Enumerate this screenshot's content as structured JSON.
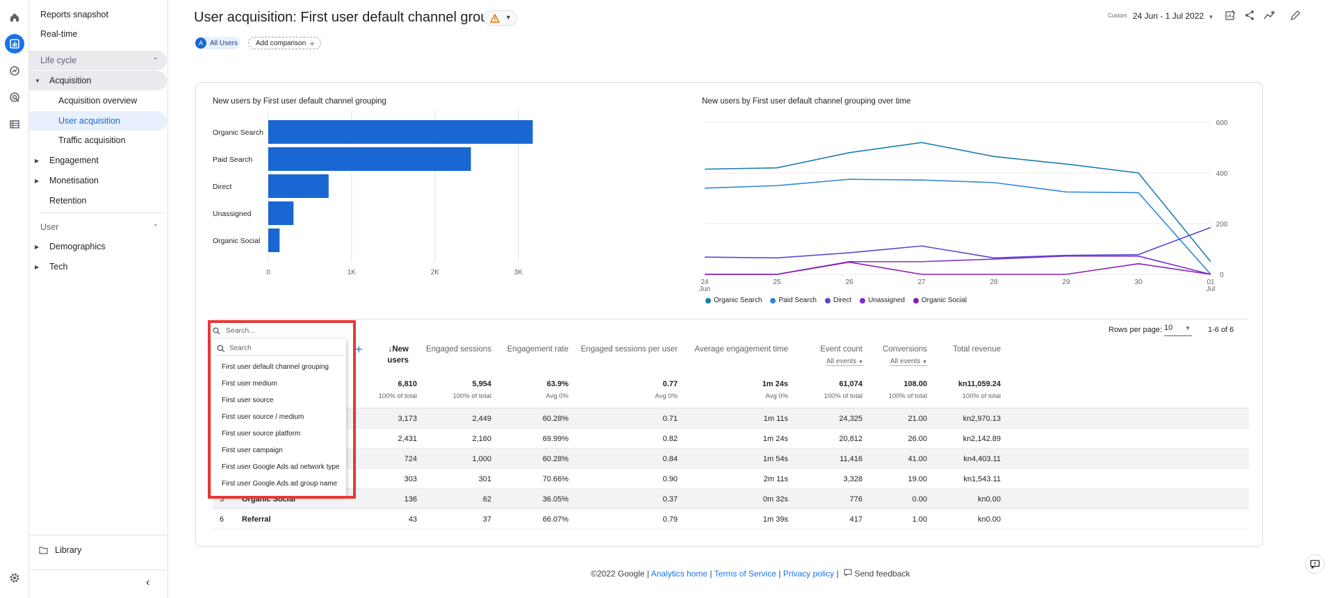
{
  "page_title": "User acquisition: First user default channel grouping",
  "header": {
    "comparison_chip": "All Users",
    "comparison_badge": "A",
    "add_comparison": "Add comparison",
    "date_label": "Custom",
    "date_range": "24 Jun - 1 Jul 2022"
  },
  "sidebar": {
    "top_items": [
      "Reports snapshot",
      "Real-time"
    ],
    "section_lifecycle": "Life cycle",
    "acquisition": "Acquisition",
    "acquisition_children": [
      "Acquisition overview",
      "User acquisition",
      "Traffic acquisition"
    ],
    "lifecycle_items": [
      "Engagement",
      "Monetisation",
      "Retention"
    ],
    "section_user": "User",
    "user_items": [
      "Demographics",
      "Tech"
    ],
    "library": "Library"
  },
  "bar_chart": {
    "title": "New users by First user default channel grouping",
    "x_ticks": [
      "0",
      "1K",
      "2K",
      "3K"
    ]
  },
  "line_chart": {
    "title": "New users by First user default channel grouping over time",
    "y_ticks": [
      "600",
      "400",
      "200",
      "0"
    ],
    "x_ticks": [
      [
        "24",
        "Jun"
      ],
      [
        "25",
        ""
      ],
      [
        "26",
        ""
      ],
      [
        "27",
        ""
      ],
      [
        "28",
        ""
      ],
      [
        "29",
        ""
      ],
      [
        "30",
        ""
      ],
      [
        "01",
        "Jul"
      ]
    ]
  },
  "chart_data": [
    {
      "type": "bar",
      "title": "New users by First user default channel grouping",
      "categories": [
        "Organic Search",
        "Paid Search",
        "Direct",
        "Unassigned",
        "Organic Social"
      ],
      "values": [
        3173,
        2431,
        724,
        303,
        136
      ],
      "xlim": [
        0,
        3300
      ],
      "color": "#1967d2"
    },
    {
      "type": "line",
      "title": "New users by First user default channel grouping over time",
      "x": [
        "24 Jun",
        "25",
        "26",
        "27",
        "28",
        "29",
        "30",
        "01 Jul"
      ],
      "ylim": [
        0,
        600
      ],
      "series": [
        {
          "name": "Organic Search",
          "color": "#1a7cb0",
          "values": [
            415,
            420,
            480,
            520,
            465,
            435,
            400,
            50
          ]
        },
        {
          "name": "Paid Search",
          "color": "#2c84d9",
          "values": [
            340,
            350,
            375,
            372,
            362,
            325,
            322,
            0
          ]
        },
        {
          "name": "Direct",
          "color": "#5c46d1",
          "values": [
            68,
            65,
            85,
            112,
            65,
            75,
            78,
            185
          ]
        },
        {
          "name": "Unassigned",
          "color": "#7b2fd1",
          "values": [
            0,
            0,
            50,
            50,
            60,
            72,
            72,
            0
          ]
        },
        {
          "name": "Organic Social",
          "color": "#8a1cae",
          "values": [
            0,
            0,
            48,
            0,
            0,
            0,
            42,
            0
          ]
        }
      ],
      "legend_position": "bottom-left"
    }
  ],
  "table": {
    "search_placeholder": "Search...",
    "rows_per_page_label": "Rows per page:",
    "rows_per_page": "10",
    "pagination": "1-6 of 6",
    "columns": [
      "New users",
      "Engaged sessions",
      "Engagement rate",
      "Engaged sessions per user",
      "Average engagement time",
      "Event count",
      "Conversions",
      "Total revenue"
    ],
    "event_filter": "All events",
    "conversion_filter": "All events",
    "totals": [
      "6,810",
      "5,954",
      "63.9%",
      "0.77",
      "1m 24s",
      "61,074",
      "108.00",
      "kn11,059.24"
    ],
    "totals_sub": [
      "100% of total",
      "100% of total",
      "Avg 0%",
      "Avg 0%",
      "Avg 0%",
      "100% of total",
      "100% of total",
      "100% of total"
    ],
    "rows": [
      [
        "3,173",
        "2,449",
        "60.28%",
        "0.71",
        "1m 11s",
        "24,325",
        "21.00",
        "kn2,970.13"
      ],
      [
        "2,431",
        "2,160",
        "69.99%",
        "0.82",
        "1m 24s",
        "20,812",
        "26.00",
        "kn2,142.89"
      ],
      [
        "724",
        "1,000",
        "60.28%",
        "0.84",
        "1m 54s",
        "11,416",
        "41.00",
        "kn4,403.11"
      ],
      [
        "303",
        "301",
        "70.66%",
        "0.90",
        "2m 11s",
        "3,328",
        "19.00",
        "kn1,543.11"
      ],
      [
        "136",
        "62",
        "36.05%",
        "0.37",
        "0m 32s",
        "776",
        "0.00",
        "kn0.00"
      ],
      [
        "43",
        "37",
        "66.07%",
        "0.79",
        "1m 39s",
        "417",
        "1.00",
        "kn0.00"
      ]
    ],
    "visible_row_labels": [
      {
        "index": "5",
        "label": "Organic Social"
      },
      {
        "index": "6",
        "label": "Referral"
      }
    ]
  },
  "dropdown": {
    "search_placeholder": "Search",
    "options": [
      "First user default channel grouping",
      "First user medium",
      "First user source",
      "First user source / medium",
      "First user source platform",
      "First user campaign",
      "First user Google Ads ad network type",
      "First user Google Ads ad group name"
    ]
  },
  "footer": {
    "copyright": "©2022 Google |",
    "analytics_home": "Analytics home",
    "terms": "Terms of Service",
    "privacy": "Privacy policy",
    "feedback": "Send feedback"
  }
}
